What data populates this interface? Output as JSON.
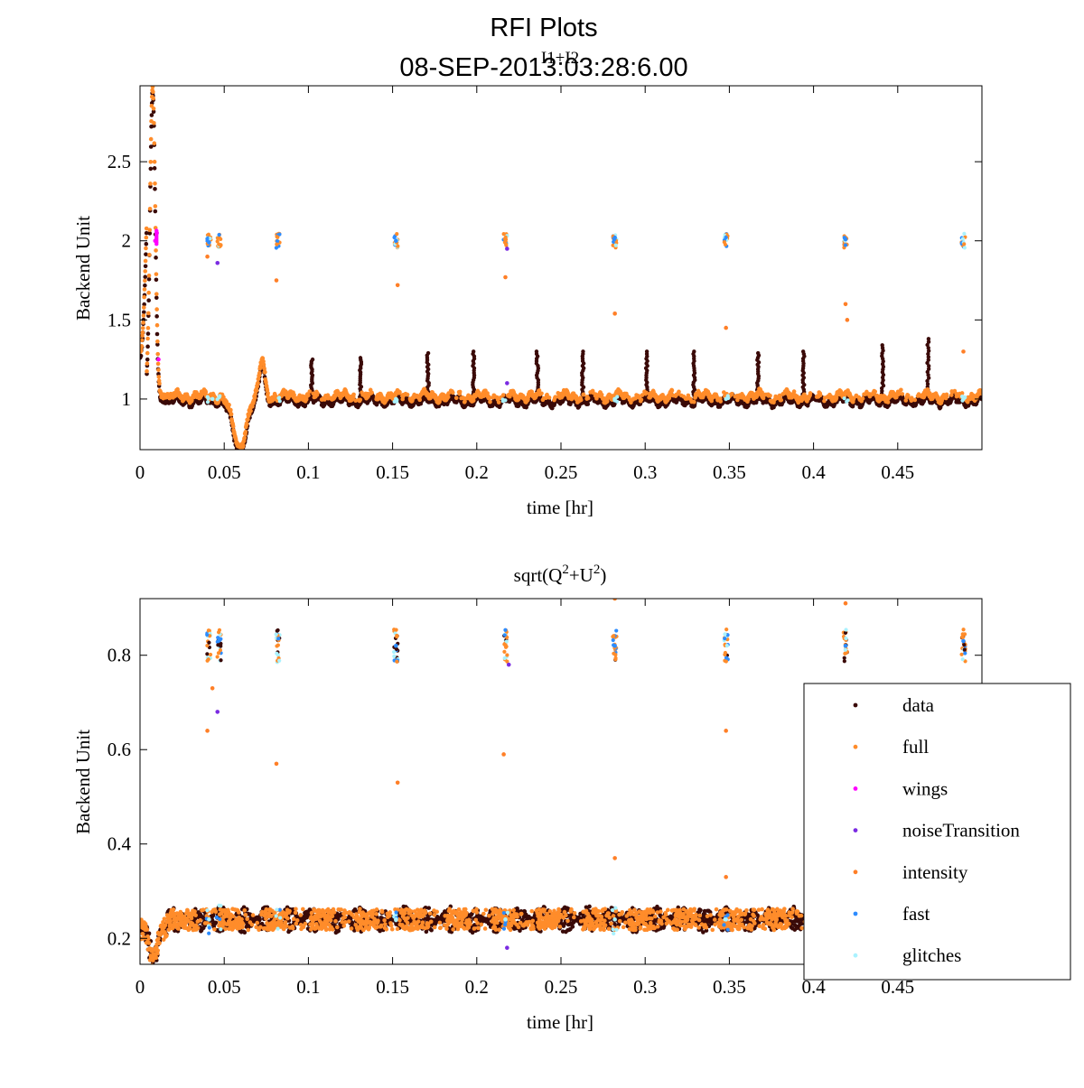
{
  "figure": {
    "title": "RFI Plots",
    "subtitle": "08-SEP-2013:03:28:6.00"
  },
  "colors": {
    "data": "#3a0a08",
    "full": "#ff8c2a",
    "wings": "#ff00ff",
    "noiseTransition": "#7a2be2",
    "intensity": "#ff7f27",
    "fast": "#2d8cff",
    "glitches": "#aaf2ff"
  },
  "chart_data": [
    {
      "type": "scatter",
      "title": "I1+I2",
      "xlabel": "time [hr]",
      "ylabel": "Backend Unit",
      "xlim": [
        0,
        0.5
      ],
      "ylim": [
        0.68,
        2.98
      ],
      "xticks": [
        0,
        0.05,
        0.1,
        0.15,
        0.2,
        0.25,
        0.3,
        0.35,
        0.4,
        0.45
      ],
      "xtick_labels": [
        "0",
        "0.05",
        "0.1",
        "0.15",
        "0.2",
        "0.25",
        "0.3",
        "0.35",
        "0.4",
        "0.45"
      ],
      "yticks": [
        1,
        1.5,
        2,
        2.5
      ],
      "ytick_labels": [
        "1",
        "1.5",
        "2",
        "2.5"
      ],
      "baseline": 1.0,
      "spike_times": [
        0.102,
        0.131,
        0.171,
        0.198,
        0.236,
        0.263,
        0.301,
        0.329,
        0.367,
        0.394,
        0.441,
        0.468
      ],
      "spike_peaks": [
        1.25,
        1.26,
        1.29,
        1.3,
        1.3,
        1.3,
        1.3,
        1.3,
        1.29,
        1.3,
        1.34,
        1.38
      ],
      "cal_times": [
        0.041,
        0.047,
        0.082,
        0.152,
        0.217,
        0.282,
        0.348,
        0.419,
        0.489
      ],
      "cal_level": 2.0,
      "series": [
        {
          "name": "data",
          "points": [
            [
              0.0,
              1.3
            ],
            [
              0.005,
              2.9
            ],
            [
              0.01,
              2.0
            ],
            [
              0.015,
              1.0
            ],
            [
              0.03,
              1.0
            ],
            [
              0.048,
              0.98
            ],
            [
              0.058,
              0.7
            ],
            [
              0.065,
              0.72
            ],
            [
              0.072,
              1.2
            ],
            [
              0.08,
              1.0
            ],
            [
              0.5,
              1.0
            ]
          ]
        },
        {
          "name": "full",
          "points": [
            [
              0.0,
              1.28
            ],
            [
              0.007,
              2.95
            ],
            [
              0.012,
              1.5
            ],
            [
              0.02,
              0.98
            ],
            [
              0.05,
              0.95
            ],
            [
              0.06,
              0.7
            ],
            [
              0.073,
              1.22
            ],
            [
              0.09,
              1.0
            ],
            [
              0.5,
              1.03
            ]
          ]
        },
        {
          "name": "wings",
          "points": [
            [
              0.009,
              2.0
            ],
            [
              0.01,
              2.05
            ],
            [
              0.011,
              1.25
            ]
          ]
        },
        {
          "name": "noiseTransition",
          "points": [
            [
              0.046,
              1.86
            ],
            [
              0.218,
              1.1
            ],
            [
              0.218,
              1.95
            ]
          ]
        },
        {
          "name": "intensity",
          "points": [
            [
              0.04,
              1.9
            ],
            [
              0.081,
              1.75
            ],
            [
              0.153,
              1.72
            ],
            [
              0.217,
              1.77
            ],
            [
              0.282,
              1.54
            ],
            [
              0.348,
              1.45
            ],
            [
              0.419,
              1.6
            ],
            [
              0.42,
              1.5
            ],
            [
              0.489,
              1.3
            ]
          ]
        },
        {
          "name": "fast",
          "points": [
            [
              0.041,
              1.99
            ],
            [
              0.152,
              2.0
            ],
            [
              0.282,
              2.02
            ],
            [
              0.419,
              2.01
            ]
          ]
        },
        {
          "name": "glitches",
          "points": [
            [
              0.043,
              1.0
            ],
            [
              0.152,
              1.0
            ],
            [
              0.282,
              1.0
            ],
            [
              0.348,
              1.0
            ],
            [
              0.489,
              1.0
            ]
          ]
        }
      ]
    },
    {
      "type": "scatter",
      "title": "sqrt(Q^2+U^2)",
      "title_parts": {
        "a": "sqrt(Q",
        "exp1": "2",
        "b": "+U",
        "exp2": "2",
        "c": ")"
      },
      "xlabel": "time [hr]",
      "ylabel": "Backend Unit",
      "xlim": [
        0,
        0.5
      ],
      "ylim": [
        0.145,
        0.92
      ],
      "xticks": [
        0,
        0.05,
        0.1,
        0.15,
        0.2,
        0.25,
        0.3,
        0.35,
        0.4,
        0.45
      ],
      "xtick_labels": [
        "0",
        "0.05",
        "0.1",
        "0.15",
        "0.2",
        "0.25",
        "0.3",
        "0.35",
        "0.4",
        "0.45"
      ],
      "yticks": [
        0.2,
        0.4,
        0.6,
        0.8
      ],
      "ytick_labels": [
        "0.2",
        "0.4",
        "0.6",
        "0.8"
      ],
      "baseline": 0.24,
      "cal_times": [
        0.041,
        0.047,
        0.082,
        0.152,
        0.217,
        0.282,
        0.348,
        0.419,
        0.489
      ],
      "cal_level": 0.82,
      "series": [
        {
          "name": "data",
          "points": [
            [
              0.0,
              0.21
            ],
            [
              0.007,
              0.16
            ],
            [
              0.015,
              0.24
            ],
            [
              0.5,
              0.24
            ]
          ]
        },
        {
          "name": "full",
          "points": [
            [
              0.0,
              0.22
            ],
            [
              0.008,
              0.15
            ],
            [
              0.02,
              0.24
            ],
            [
              0.5,
              0.24
            ]
          ]
        },
        {
          "name": "wings",
          "points": []
        },
        {
          "name": "noiseTransition",
          "points": [
            [
              0.046,
              0.68
            ],
            [
              0.218,
              0.18
            ],
            [
              0.219,
              0.78
            ]
          ]
        },
        {
          "name": "intensity",
          "points": [
            [
              0.04,
              0.64
            ],
            [
              0.043,
              0.73
            ],
            [
              0.081,
              0.57
            ],
            [
              0.153,
              0.53
            ],
            [
              0.216,
              0.59
            ],
            [
              0.282,
              0.37
            ],
            [
              0.348,
              0.64
            ],
            [
              0.348,
              0.33
            ],
            [
              0.282,
              0.92
            ],
            [
              0.419,
              0.91
            ]
          ]
        },
        {
          "name": "fast",
          "points": [
            [
              0.152,
              0.82
            ],
            [
              0.282,
              0.82
            ],
            [
              0.419,
              0.82
            ],
            [
              0.489,
              0.83
            ]
          ]
        },
        {
          "name": "glitches",
          "points": [
            [
              0.041,
              0.24
            ],
            [
              0.152,
              0.24
            ],
            [
              0.217,
              0.24
            ],
            [
              0.282,
              0.24
            ],
            [
              0.348,
              0.24
            ]
          ]
        }
      ],
      "legend": {
        "placement": "right",
        "entries": [
          "data",
          "full",
          "wings",
          "noiseTransition",
          "intensity",
          "fast",
          "glitches"
        ]
      }
    }
  ]
}
